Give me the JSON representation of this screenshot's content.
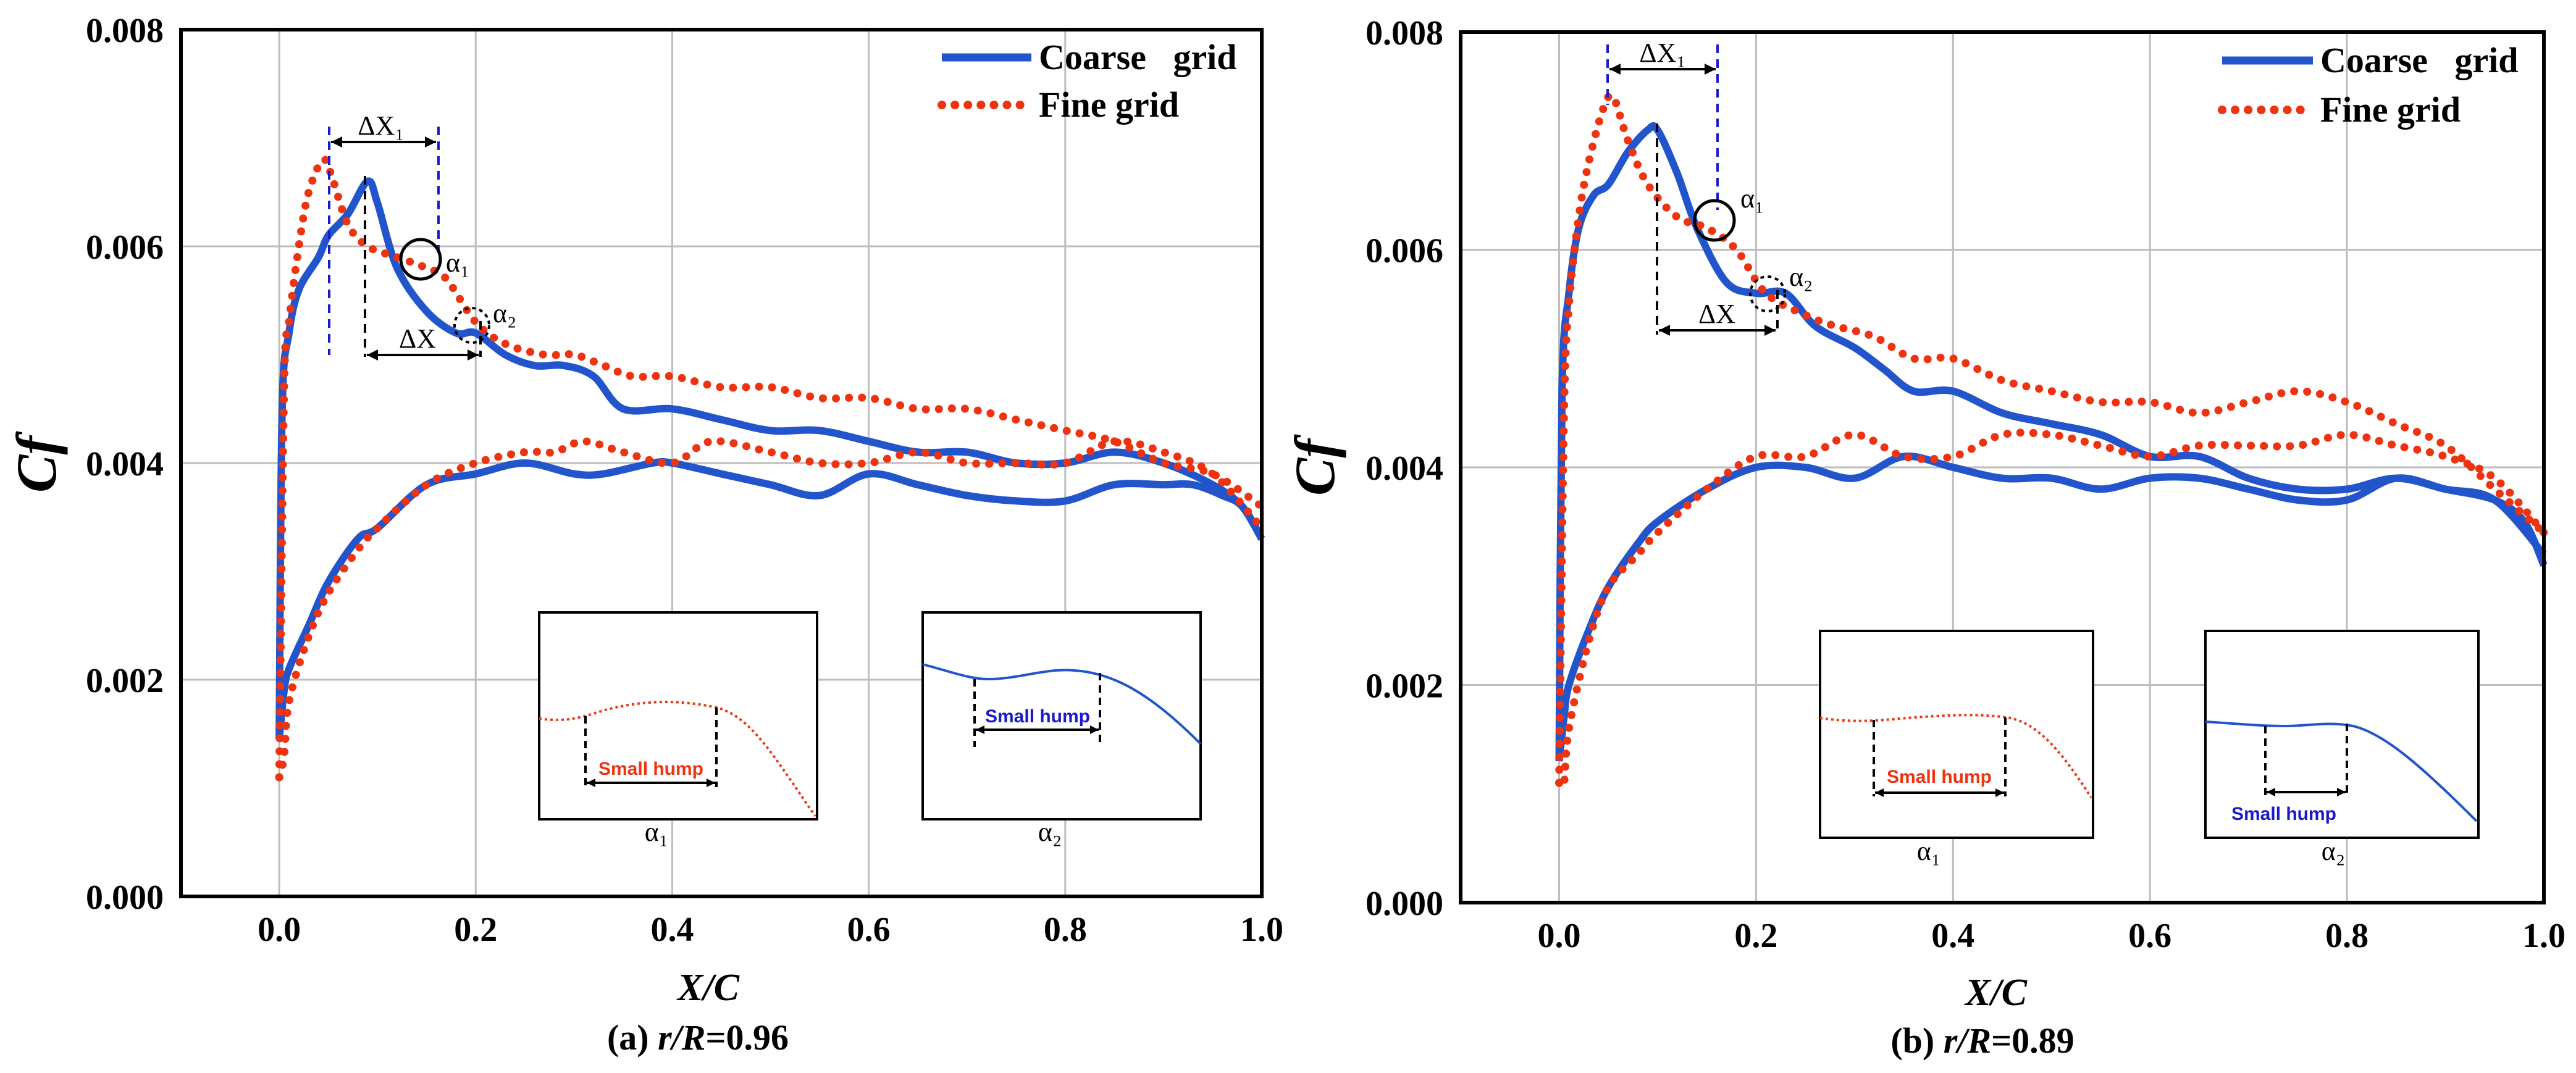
{
  "colors": {
    "coarse": "#2255cc",
    "fine": "#ee3311",
    "axis": "#000000",
    "grid": "#bdbdbd",
    "marker_blue": "#1a1acc",
    "marker_black": "#000000"
  },
  "panels": [
    {
      "caption": {
        "prefix": "(a) ",
        "var": "r/R",
        "value": "=0.96"
      },
      "ann_dx1": "ΔX₁",
      "ann_dx": "ΔX",
      "ann_a1": "α₁",
      "ann_a2": "α₂",
      "inset1": {
        "label": "α₁",
        "hump": "Small hump"
      },
      "inset2": {
        "label": "α₂",
        "hump": "Small hump"
      }
    },
    {
      "caption": {
        "prefix": "(b) ",
        "var": "r/R",
        "value": "=0.89"
      },
      "ann_dx1": "ΔX₁",
      "ann_dx": "ΔX",
      "ann_a1": "α₁",
      "ann_a2": "α₂",
      "inset1": {
        "label": "α₁",
        "hump": "Small hump"
      },
      "inset2": {
        "label": "α₂",
        "hump": "Small hump"
      }
    }
  ],
  "chart_data": [
    {
      "type": "line",
      "title": "(a) r/R=0.96",
      "xlabel": "X/C",
      "ylabel": "Cf",
      "xlim": [
        -0.1,
        1.0
      ],
      "ylim": [
        0.0,
        0.008
      ],
      "xticks": [
        "0.0",
        "0.2",
        "0.4",
        "0.6",
        "0.8",
        "1.0"
      ],
      "yticks": [
        "0.000",
        "0.002",
        "0.004",
        "0.006",
        "0.008"
      ],
      "grid": true,
      "legend": "top-right",
      "series": [
        {
          "name": "Coarse   grid",
          "style": "solid",
          "x": [
            0.0,
            0.003,
            0.01,
            0.02,
            0.04,
            0.05,
            0.07,
            0.09,
            0.1,
            0.12,
            0.15,
            0.18,
            0.2,
            0.23,
            0.26,
            0.29,
            0.32,
            0.35,
            0.4,
            0.45,
            0.5,
            0.55,
            0.6,
            0.65,
            0.7,
            0.75,
            0.8,
            0.85,
            0.9,
            0.95,
            0.98,
            1.0
          ],
          "y": [
            0.00145,
            0.0045,
            0.0052,
            0.0056,
            0.0059,
            0.0061,
            0.0063,
            0.0066,
            0.0064,
            0.0058,
            0.0054,
            0.0052,
            0.0052,
            0.005,
            0.0049,
            0.0049,
            0.0048,
            0.0045,
            0.0045,
            0.0044,
            0.0043,
            0.0043,
            0.0042,
            0.0041,
            0.0041,
            0.004,
            0.004,
            0.0041,
            0.004,
            0.0038,
            0.0036,
            0.0033
          ]
        },
        {
          "name": "Coarse   grid",
          "style": "solid",
          "x": [
            0.0,
            0.005,
            0.01,
            0.03,
            0.05,
            0.08,
            0.1,
            0.15,
            0.2,
            0.25,
            0.3,
            0.33,
            0.38,
            0.4,
            0.45,
            0.5,
            0.55,
            0.6,
            0.65,
            0.7,
            0.75,
            0.8,
            0.85,
            0.9,
            0.93,
            0.96,
            0.98,
            1.0
          ],
          "y": [
            0.00145,
            0.0019,
            0.0021,
            0.0025,
            0.0029,
            0.0033,
            0.0034,
            0.0038,
            0.0039,
            0.004,
            0.0039,
            0.0039,
            0.004,
            0.004,
            0.0039,
            0.0038,
            0.0037,
            0.0039,
            0.0038,
            0.0037,
            0.00365,
            0.00365,
            0.0038,
            0.0038,
            0.0038,
            0.0037,
            0.0036,
            0.0033
          ]
        },
        {
          "name": "Fine grid",
          "style": "dotted",
          "x": [
            0.0,
            0.005,
            0.01,
            0.02,
            0.03,
            0.045,
            0.055,
            0.07,
            0.09,
            0.12,
            0.15,
            0.17,
            0.2,
            0.23,
            0.27,
            0.3,
            0.33,
            0.36,
            0.4,
            0.45,
            0.5,
            0.55,
            0.6,
            0.65,
            0.7,
            0.75,
            0.8,
            0.85,
            0.9,
            0.95,
            1.0
          ],
          "y": [
            0.0011,
            0.0047,
            0.0053,
            0.006,
            0.0065,
            0.0068,
            0.0066,
            0.0062,
            0.006,
            0.0059,
            0.0058,
            0.0057,
            0.0053,
            0.0051,
            0.005,
            0.005,
            0.0049,
            0.0048,
            0.0048,
            0.0047,
            0.0047,
            0.0046,
            0.0046,
            0.0045,
            0.0045,
            0.0044,
            0.0043,
            0.0042,
            0.004,
            0.0039,
            0.0036
          ]
        },
        {
          "name": "Fine grid",
          "style": "dotted",
          "x": [
            0.0,
            0.005,
            0.01,
            0.03,
            0.05,
            0.08,
            0.1,
            0.15,
            0.2,
            0.25,
            0.28,
            0.31,
            0.35,
            0.4,
            0.44,
            0.5,
            0.55,
            0.6,
            0.65,
            0.7,
            0.75,
            0.8,
            0.85,
            0.9,
            0.95,
            1.0
          ],
          "y": [
            0.0011,
            0.0013,
            0.0018,
            0.0024,
            0.0028,
            0.0032,
            0.0034,
            0.0038,
            0.004,
            0.0041,
            0.0041,
            0.0042,
            0.0041,
            0.004,
            0.0042,
            0.0041,
            0.004,
            0.004,
            0.0041,
            0.004,
            0.004,
            0.004,
            0.0042,
            0.0041,
            0.0039,
            0.0034
          ]
        }
      ]
    },
    {
      "type": "line",
      "title": "(b) r/R=0.89",
      "xlabel": "X/C",
      "ylabel": "Cf",
      "xlim": [
        -0.1,
        1.0
      ],
      "ylim": [
        0.0,
        0.008
      ],
      "xticks": [
        "0.0",
        "0.2",
        "0.4",
        "0.6",
        "0.8",
        "1.0"
      ],
      "yticks": [
        "0.000",
        "0.002",
        "0.004",
        "0.006",
        "0.008"
      ],
      "grid": true,
      "legend": "top-right",
      "series": [
        {
          "name": "Coarse   grid",
          "style": "solid",
          "x": [
            0.0,
            0.003,
            0.01,
            0.02,
            0.035,
            0.05,
            0.07,
            0.09,
            0.1,
            0.12,
            0.14,
            0.17,
            0.2,
            0.23,
            0.26,
            0.3,
            0.33,
            0.36,
            0.4,
            0.45,
            0.5,
            0.55,
            0.6,
            0.65,
            0.7,
            0.75,
            0.8,
            0.85,
            0.9,
            0.95,
            1.0
          ],
          "y": [
            0.0013,
            0.0047,
            0.0056,
            0.0062,
            0.0065,
            0.0066,
            0.0069,
            0.0071,
            0.0071,
            0.0067,
            0.0062,
            0.0057,
            0.0056,
            0.0056,
            0.0053,
            0.0051,
            0.0049,
            0.0047,
            0.0047,
            0.0045,
            0.0044,
            0.0043,
            0.0041,
            0.0041,
            0.0039,
            0.0038,
            0.0038,
            0.0039,
            0.0038,
            0.0037,
            0.0032
          ]
        },
        {
          "name": "Coarse   grid",
          "style": "solid",
          "x": [
            0.0,
            0.005,
            0.01,
            0.03,
            0.05,
            0.08,
            0.1,
            0.15,
            0.2,
            0.25,
            0.3,
            0.35,
            0.4,
            0.45,
            0.5,
            0.55,
            0.6,
            0.65,
            0.7,
            0.75,
            0.8,
            0.85,
            0.9,
            0.95,
            0.98,
            1.0
          ],
          "y": [
            0.0013,
            0.0017,
            0.002,
            0.0025,
            0.0029,
            0.0033,
            0.0035,
            0.0038,
            0.004,
            0.004,
            0.0039,
            0.0041,
            0.004,
            0.0039,
            0.0039,
            0.0038,
            0.0039,
            0.0039,
            0.0038,
            0.0037,
            0.0037,
            0.0039,
            0.0038,
            0.0037,
            0.0035,
            0.0031
          ]
        },
        {
          "name": "Fine grid",
          "style": "dotted",
          "x": [
            0.0,
            0.005,
            0.01,
            0.02,
            0.03,
            0.045,
            0.055,
            0.07,
            0.09,
            0.12,
            0.15,
            0.18,
            0.21,
            0.25,
            0.28,
            0.32,
            0.36,
            0.4,
            0.45,
            0.5,
            0.55,
            0.6,
            0.65,
            0.7,
            0.75,
            0.8,
            0.85,
            0.9,
            0.95,
            1.0
          ],
          "y": [
            0.0011,
            0.0045,
            0.0055,
            0.0063,
            0.0068,
            0.0073,
            0.0074,
            0.007,
            0.0066,
            0.0063,
            0.0062,
            0.006,
            0.0056,
            0.0054,
            0.0053,
            0.0052,
            0.005,
            0.005,
            0.0048,
            0.0047,
            0.0046,
            0.0046,
            0.0045,
            0.0046,
            0.0047,
            0.0046,
            0.0044,
            0.0042,
            0.0038,
            0.0034
          ]
        },
        {
          "name": "Fine grid",
          "style": "dotted",
          "x": [
            0.0,
            0.005,
            0.01,
            0.03,
            0.05,
            0.08,
            0.1,
            0.15,
            0.2,
            0.25,
            0.3,
            0.35,
            0.4,
            0.45,
            0.5,
            0.55,
            0.6,
            0.65,
            0.7,
            0.75,
            0.8,
            0.85,
            0.9,
            0.95,
            1.0
          ],
          "y": [
            0.0011,
            0.0011,
            0.0016,
            0.0024,
            0.0029,
            0.0032,
            0.0034,
            0.0038,
            0.0041,
            0.0041,
            0.0043,
            0.0041,
            0.0041,
            0.0043,
            0.0043,
            0.0042,
            0.0041,
            0.0042,
            0.0042,
            0.0042,
            0.0043,
            0.0042,
            0.0041,
            0.0039,
            0.0034
          ]
        }
      ]
    }
  ]
}
